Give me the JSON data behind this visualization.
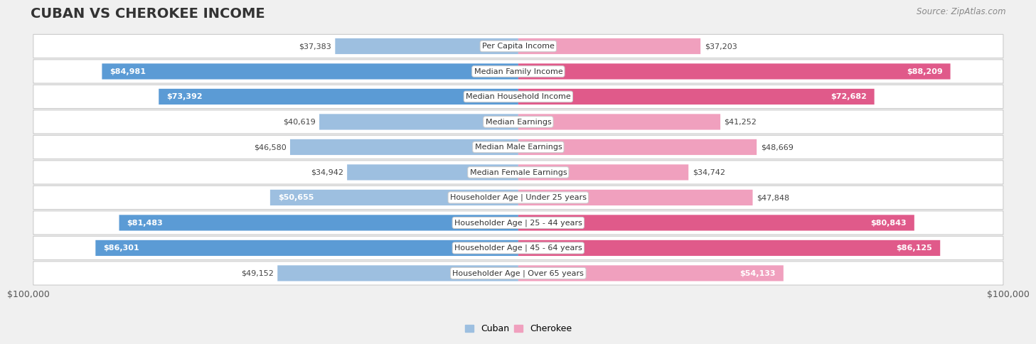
{
  "title": "CUBAN VS CHEROKEE INCOME",
  "source": "Source: ZipAtlas.com",
  "categories": [
    "Per Capita Income",
    "Median Family Income",
    "Median Household Income",
    "Median Earnings",
    "Median Male Earnings",
    "Median Female Earnings",
    "Householder Age | Under 25 years",
    "Householder Age | 25 - 44 years",
    "Householder Age | 45 - 64 years",
    "Householder Age | Over 65 years"
  ],
  "cuban_values": [
    37383,
    84981,
    73392,
    40619,
    46580,
    34942,
    50655,
    81483,
    86301,
    49152
  ],
  "cherokee_values": [
    37203,
    88209,
    72682,
    41252,
    48669,
    34742,
    47848,
    80843,
    86125,
    54133
  ],
  "cuban_labels": [
    "$37,383",
    "$84,981",
    "$73,392",
    "$40,619",
    "$46,580",
    "$34,942",
    "$50,655",
    "$81,483",
    "$86,301",
    "$49,152"
  ],
  "cherokee_labels": [
    "$37,203",
    "$88,209",
    "$72,682",
    "$41,252",
    "$48,669",
    "$34,742",
    "$47,848",
    "$80,843",
    "$86,125",
    "$54,133"
  ],
  "max_value": 100000,
  "cuban_color_light": "#9dbfe0",
  "cuban_color_dark": "#5b9bd5",
  "cherokee_color_light": "#f0a0be",
  "cherokee_color_dark": "#e05a8a",
  "bg_color": "#f0f0f0",
  "row_bg_color": "#ffffff",
  "row_border_color": "#cccccc",
  "title_fontsize": 14,
  "source_fontsize": 8.5,
  "label_fontsize": 8,
  "value_fontsize": 8,
  "axis_label": "$100,000",
  "legend_cuban": "Cuban",
  "legend_cherokee": "Cherokee",
  "outside_label_color": "#444444",
  "inside_label_color": "#ffffff",
  "cuban_inside_threshold": 50000,
  "cherokee_inside_threshold": 50000
}
